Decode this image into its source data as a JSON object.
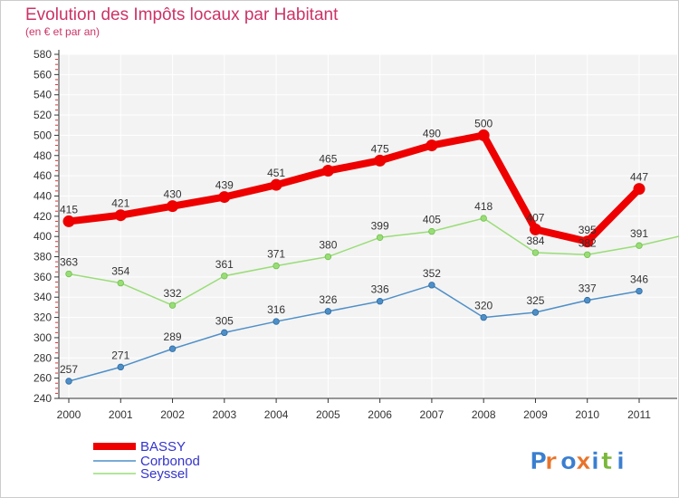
{
  "chart_data": {
    "type": "line",
    "title": "Evolution des Impôts locaux par Habitant",
    "subtitle": "(en € et par an)",
    "xlabel": "",
    "ylabel": "",
    "x": [
      "2000",
      "2001",
      "2002",
      "2003",
      "2004",
      "2005",
      "2006",
      "2007",
      "2008",
      "2009",
      "2010",
      "2011"
    ],
    "y_ticks": [
      240,
      260,
      280,
      300,
      320,
      340,
      360,
      380,
      400,
      420,
      440,
      460,
      480,
      500,
      520,
      540,
      560,
      580
    ],
    "ylim": [
      240,
      580
    ],
    "grid": true,
    "legend_position": "bottom-left",
    "series": [
      {
        "name": "BASSY",
        "color": "#ee0000",
        "values": [
          415,
          421,
          430,
          439,
          451,
          465,
          475,
          490,
          500,
          407,
          395,
          447
        ],
        "labels": [
          "415",
          "421",
          "430",
          "439",
          "451",
          "465",
          "475",
          "490",
          "500",
          "407",
          "395",
          "447"
        ]
      },
      {
        "name": "Corbonod",
        "color": "#4f8fc8",
        "values": [
          257,
          271,
          289,
          305,
          316,
          326,
          336,
          352,
          320,
          325,
          337,
          346
        ],
        "labels": [
          "257",
          "271",
          "289",
          "305",
          "316",
          "326",
          "336",
          "352",
          "320",
          "325",
          "337",
          "346"
        ]
      },
      {
        "name": "Seyssel",
        "color": "#99dd77",
        "values": [
          363,
          354,
          332,
          361,
          371,
          380,
          399,
          405,
          418,
          384,
          382,
          391
        ],
        "labels": [
          "363",
          "354",
          "332",
          "361",
          "371",
          "380",
          "399",
          "405",
          "418",
          "384",
          "382",
          "391"
        ]
      }
    ],
    "colors": {
      "title": "#cc3366",
      "subtitle": "#cc3366",
      "legend_text": "#3333cc",
      "plot_background": "#f3f3f3",
      "grid": "#ffffff"
    }
  },
  "brand": {
    "logo_text": "Proxiti"
  }
}
